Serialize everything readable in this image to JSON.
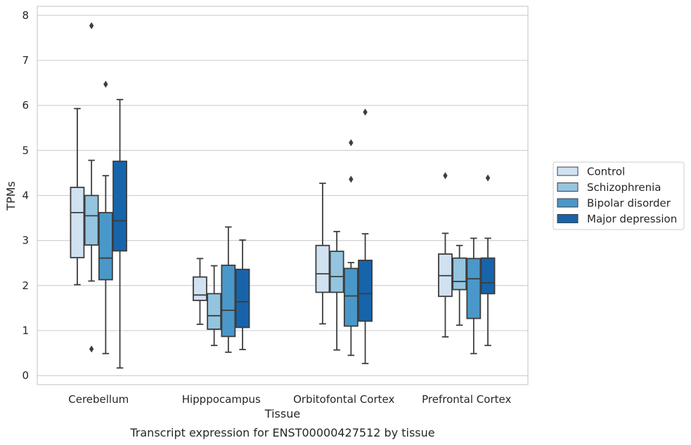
{
  "caption": "Transcript expression for ENST00000427512 by tissue",
  "chart_data": {
    "type": "box",
    "xlabel": "Tissue",
    "ylabel": "TPMs",
    "ylim": [
      -0.2,
      8.2
    ],
    "yticks": [
      0,
      1,
      2,
      3,
      4,
      5,
      6,
      7,
      8
    ],
    "grid": "horizontal",
    "legend_position": "right",
    "categories": [
      "Cerebellum",
      "Hipppocampus",
      "Orbitofontal Cortex",
      "Prefrontal Cortex"
    ],
    "series": [
      {
        "name": "Control",
        "color": "#d0e1f2",
        "boxes": [
          {
            "whislo": 2.02,
            "q1": 2.62,
            "med": 3.62,
            "q3": 4.18,
            "whishi": 5.93,
            "fliers": []
          },
          {
            "whislo": 1.14,
            "q1": 1.67,
            "med": 1.79,
            "q3": 2.19,
            "whishi": 2.6,
            "fliers": []
          },
          {
            "whislo": 1.15,
            "q1": 1.85,
            "med": 2.26,
            "q3": 2.89,
            "whishi": 4.27,
            "fliers": []
          },
          {
            "whislo": 0.86,
            "q1": 1.76,
            "med": 2.22,
            "q3": 2.7,
            "whishi": 3.16,
            "fliers": [
              4.44
            ]
          }
        ]
      },
      {
        "name": "Schizophrenia",
        "color": "#94c4df",
        "boxes": [
          {
            "whislo": 2.1,
            "q1": 2.9,
            "med": 3.55,
            "q3": 4.0,
            "whishi": 4.78,
            "fliers": [
              0.59,
              7.77
            ]
          },
          {
            "whislo": 0.67,
            "q1": 1.03,
            "med": 1.33,
            "q3": 1.82,
            "whishi": 2.44,
            "fliers": []
          },
          {
            "whislo": 0.57,
            "q1": 1.85,
            "med": 2.2,
            "q3": 2.76,
            "whishi": 3.2,
            "fliers": []
          },
          {
            "whislo": 1.12,
            "q1": 1.91,
            "med": 2.09,
            "q3": 2.61,
            "whishi": 2.89,
            "fliers": []
          }
        ]
      },
      {
        "name": "Bipolar disorder",
        "color": "#4a98c9",
        "boxes": [
          {
            "whislo": 0.49,
            "q1": 2.13,
            "med": 2.61,
            "q3": 3.62,
            "whishi": 4.44,
            "fliers": [
              6.47
            ]
          },
          {
            "whislo": 0.52,
            "q1": 0.87,
            "med": 1.45,
            "q3": 2.45,
            "whishi": 3.3,
            "fliers": []
          },
          {
            "whislo": 0.45,
            "q1": 1.1,
            "med": 1.77,
            "q3": 2.38,
            "whishi": 2.51,
            "fliers": [
              4.36,
              5.17
            ]
          },
          {
            "whislo": 0.49,
            "q1": 1.27,
            "med": 2.15,
            "q3": 2.6,
            "whishi": 3.05,
            "fliers": []
          }
        ]
      },
      {
        "name": "Major depression",
        "color": "#1764ab",
        "boxes": [
          {
            "whislo": 0.17,
            "q1": 2.77,
            "med": 3.44,
            "q3": 4.76,
            "whishi": 6.13,
            "fliers": []
          },
          {
            "whislo": 0.58,
            "q1": 1.07,
            "med": 1.64,
            "q3": 2.36,
            "whishi": 3.01,
            "fliers": []
          },
          {
            "whislo": 0.27,
            "q1": 1.21,
            "med": 1.82,
            "q3": 2.56,
            "whishi": 3.15,
            "fliers": [
              5.85
            ]
          },
          {
            "whislo": 0.67,
            "q1": 1.82,
            "med": 2.06,
            "q3": 2.61,
            "whishi": 3.05,
            "fliers": [
              4.39
            ]
          }
        ]
      }
    ]
  }
}
